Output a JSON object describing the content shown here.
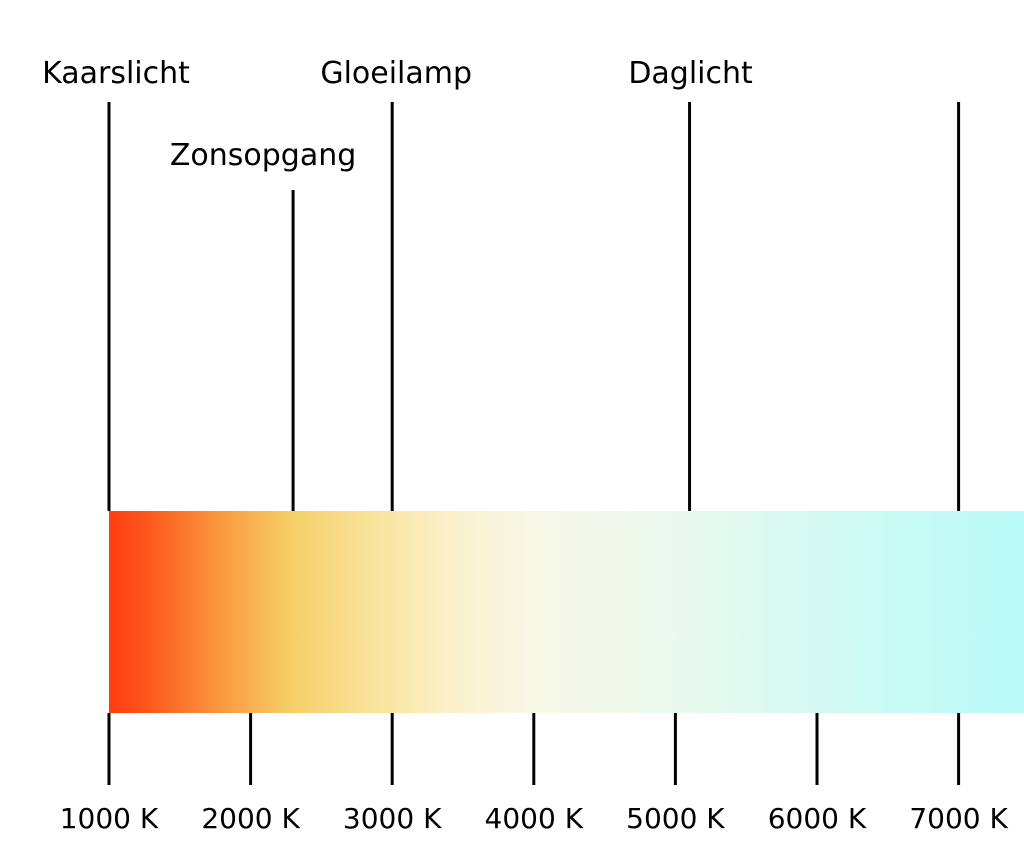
{
  "scale": {
    "unit": "K",
    "range": [
      1000,
      7500
    ],
    "ticks": [
      {
        "value": 1000,
        "label": "1000 K"
      },
      {
        "value": 2000,
        "label": "2000 K"
      },
      {
        "value": 3000,
        "label": "3000 K"
      },
      {
        "value": 4000,
        "label": "4000 K"
      },
      {
        "value": 5000,
        "label": "5000 K"
      },
      {
        "value": 6000,
        "label": "6000 K"
      },
      {
        "value": 7000,
        "label": "7000 K"
      }
    ]
  },
  "markers": [
    {
      "label": "Kaarslicht",
      "value": 1000
    },
    {
      "label": "Zonsopgang",
      "value": 2300
    },
    {
      "label": "Gloeilamp",
      "value": 3000
    },
    {
      "label": "Daglicht",
      "value": 5100
    },
    {
      "label": "",
      "value": 7000
    }
  ],
  "gradient_colors": [
    {
      "value": 1000,
      "color": "#ff3d12"
    },
    {
      "value": 1300,
      "color": "#fd5a1e"
    },
    {
      "value": 1800,
      "color": "#fa9a40"
    },
    {
      "value": 2300,
      "color": "#f6cf68"
    },
    {
      "value": 2900,
      "color": "#f9e49d"
    },
    {
      "value": 3400,
      "color": "#fbf0c8"
    },
    {
      "value": 4000,
      "color": "#f8f8e8"
    },
    {
      "value": 5000,
      "color": "#ebf9ee"
    },
    {
      "value": 6000,
      "color": "#d5f9f2"
    },
    {
      "value": 7500,
      "color": "#b8fbf8"
    }
  ]
}
